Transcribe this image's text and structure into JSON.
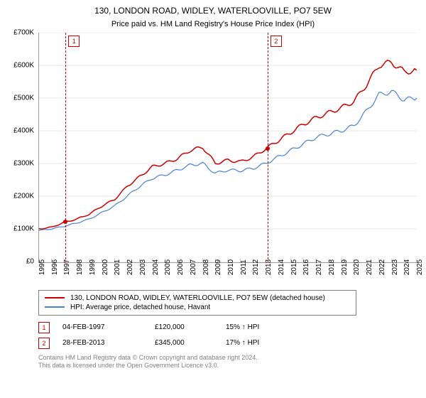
{
  "title": "130, LONDON ROAD, WIDLEY, WATERLOOVILLE, PO7 5EW",
  "subtitle": "Price paid vs. HM Land Registry's House Price Index (HPI)",
  "chart": {
    "type": "line",
    "background_color": "#ffffff",
    "grid_color": "#d0d0d0",
    "axis_color": "#999999",
    "font_size_axis": 10,
    "ylim": [
      0,
      700000
    ],
    "ytick_step": 100000,
    "y_labels": [
      "£0",
      "£100K",
      "£200K",
      "£300K",
      "£400K",
      "£500K",
      "£600K",
      "£700K"
    ],
    "x_years": [
      1995,
      1996,
      1997,
      1998,
      1999,
      2000,
      2001,
      2002,
      2003,
      2004,
      2005,
      2006,
      2007,
      2008,
      2009,
      2010,
      2011,
      2012,
      2013,
      2014,
      2015,
      2016,
      2017,
      2018,
      2019,
      2020,
      2021,
      2022,
      2023,
      2024,
      2025
    ],
    "series": [
      {
        "name": "130, LONDON ROAD, WIDLEY, WATERLOOVILLE, PO7 5EW (detached house)",
        "color": "#cc0000",
        "line_width": 1.5,
        "values": [
          100,
          105,
          120,
          130,
          145,
          170,
          190,
          230,
          260,
          290,
          300,
          315,
          340,
          350,
          300,
          310,
          305,
          320,
          345,
          370,
          395,
          420,
          440,
          455,
          470,
          490,
          540,
          600,
          610,
          580,
          585
        ]
      },
      {
        "name": "HPI: Average price, detached house, Havant",
        "color": "#4a80d6",
        "line_width": 1.2,
        "values": [
          95,
          100,
          108,
          118,
          130,
          150,
          170,
          200,
          230,
          255,
          265,
          280,
          295,
          300,
          270,
          280,
          278,
          285,
          300,
          320,
          340,
          360,
          380,
          390,
          400,
          415,
          460,
          510,
          520,
          495,
          500
        ]
      }
    ],
    "markers": [
      {
        "n": "1",
        "year": 1997.1,
        "date": "04-FEB-1997",
        "price": "£120,000",
        "pct": "15% ↑ HPI",
        "y_value": 120
      },
      {
        "n": "2",
        "year": 2013.15,
        "date": "28-FEB-2013",
        "price": "£345,000",
        "pct": "17% ↑ HPI",
        "y_value": 345
      }
    ],
    "marker_color": "#cc0000",
    "marker_dash": "4,3"
  },
  "legend": {
    "border_color": "#808080"
  },
  "footer": {
    "line1": "Contains HM Land Registry data © Crown copyright and database right 2024.",
    "line2": "This data is licensed under the Open Government Licence v3.0.",
    "color": "#808080"
  }
}
